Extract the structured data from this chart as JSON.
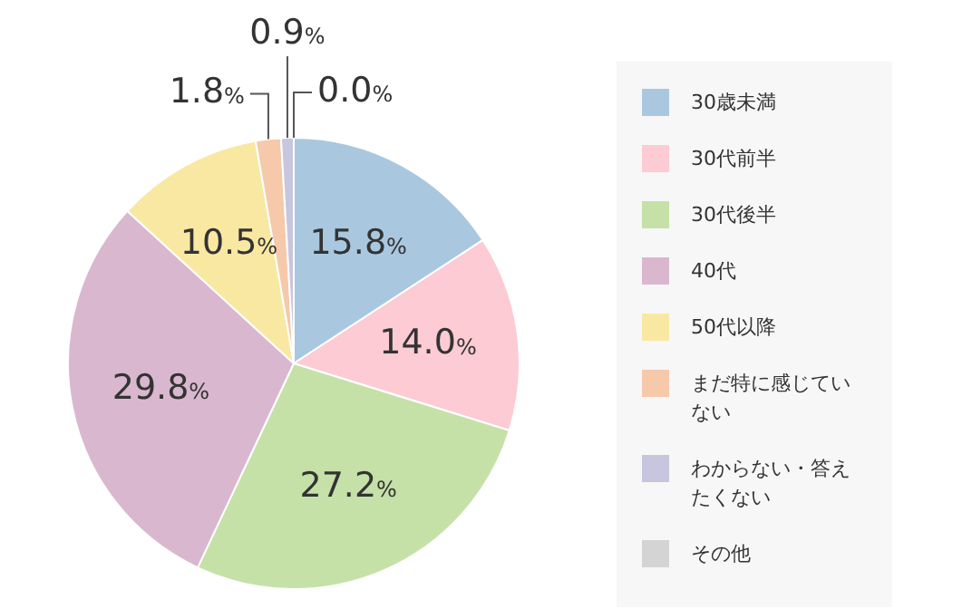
{
  "chart_data": {
    "type": "pie",
    "categories": [
      "30歳未満",
      "30代前半",
      "30代後半",
      "40代",
      "50代以降",
      "まだ特に感じていない",
      "わからない・答えたくない",
      "その他"
    ],
    "values": [
      15.8,
      14.0,
      27.2,
      29.8,
      10.5,
      1.8,
      0.9,
      0.0
    ],
    "value_labels": [
      "15.8%",
      "14.0%",
      "27.2%",
      "29.8%",
      "10.5%",
      "1.8%",
      "0.9%",
      "0.0%"
    ],
    "colors": [
      "#a9c8e0",
      "#fccbd4",
      "#c5e1a8",
      "#d9b8cf",
      "#f9e8a2",
      "#f5c9aa",
      "#c8c5de",
      "#d4d4d4"
    ],
    "legend": "right"
  }
}
